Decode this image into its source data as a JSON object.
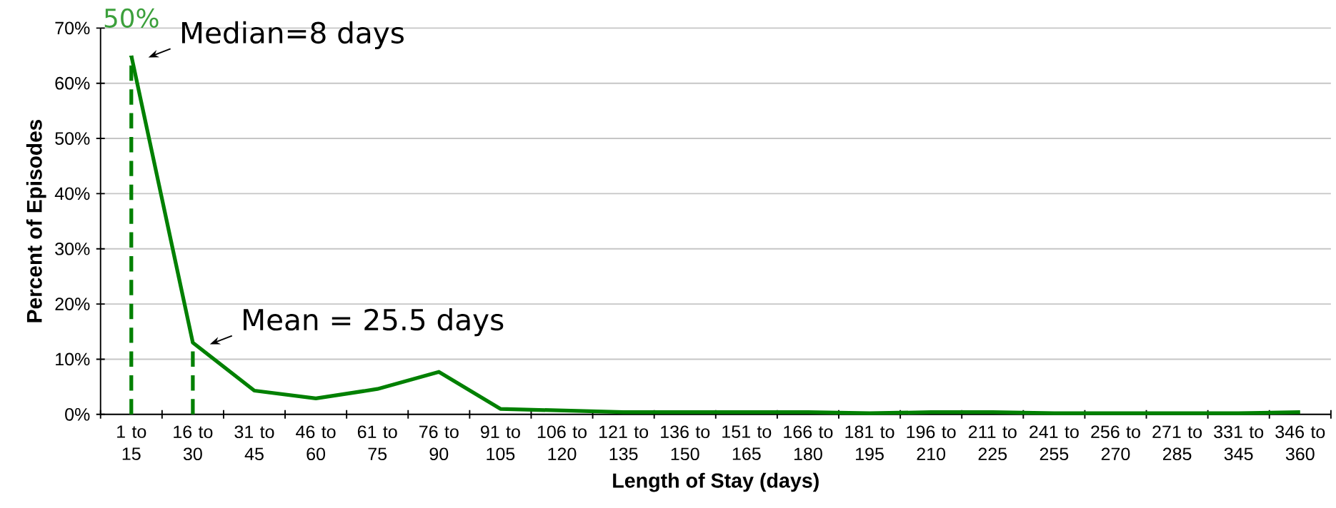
{
  "chart_data": {
    "type": "line",
    "xlabel": "Length of Stay (days)",
    "ylabel": "Percent of Episodes",
    "categories": [
      "1 to 15",
      "16 to 30",
      "31 to 45",
      "46 to 60",
      "61 to 75",
      "76 to 90",
      "91 to 105",
      "106 to 120",
      "121 to 135",
      "136 to 150",
      "151 to 165",
      "166 to 180",
      "181 to 195",
      "196 to 210",
      "211 to 225",
      "241 to 255",
      "256 to 270",
      "271 to 285",
      "331 to 345",
      "346 to 360"
    ],
    "series": [
      {
        "color": "#008000",
        "values": [
          65,
          13,
          4.3,
          2.9,
          4.6,
          7.7,
          1.0,
          0.7,
          0.4,
          0.4,
          0.4,
          0.4,
          0.2,
          0.4,
          0.4,
          0.2,
          0.2,
          0.2,
          0.2,
          0.4
        ]
      }
    ],
    "ylim": [
      0,
      70
    ],
    "yticks": [
      {
        "value": 0,
        "label": "0%"
      },
      {
        "value": 10,
        "label": "10%"
      },
      {
        "value": 20,
        "label": "20%"
      },
      {
        "value": 30,
        "label": "30%"
      },
      {
        "value": 40,
        "label": "40%"
      },
      {
        "value": 50,
        "label": "50%"
      },
      {
        "value": 60,
        "label": "60%"
      },
      {
        "value": 70,
        "label": "70%"
      }
    ],
    "grid": "y",
    "marker": "none",
    "line_style": "solid",
    "ref_lines": [
      {
        "axis": "x",
        "value": "1 to 15",
        "color": "#008000",
        "line_style": "dashed"
      },
      {
        "axis": "x",
        "value": "16 to 30",
        "color": "#008000",
        "line_style": "dashed"
      }
    ],
    "annotations": [
      {
        "text": "Median=8 days",
        "x": "1 to 15",
        "y": 65
      },
      {
        "text": "Mean = 25.5 days",
        "x": "16 to 30",
        "y": 13
      },
      "50%"
    ]
  }
}
